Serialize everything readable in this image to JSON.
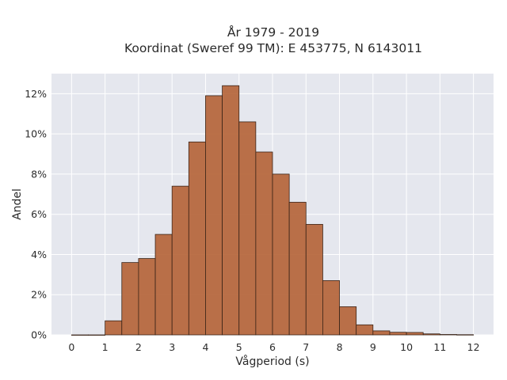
{
  "chart_data": {
    "type": "bar",
    "title_line1": "År 1979 - 2019",
    "title_line2": "Koordinat (Sweref 99 TM): E 453775, N 6143011",
    "xlabel": "Vågperiod (s)",
    "ylabel": "Andel",
    "bin_width": 0.5,
    "bin_starts": [
      0,
      0.5,
      1,
      1.5,
      2,
      2.5,
      3,
      3.5,
      4,
      4.5,
      5,
      5.5,
      6,
      6.5,
      7,
      7.5,
      8,
      8.5,
      9,
      9.5,
      10,
      10.5,
      11,
      11.5
    ],
    "values": [
      0.0,
      0.0,
      0.7,
      3.6,
      3.8,
      5.0,
      7.4,
      9.6,
      11.9,
      12.4,
      10.6,
      9.1,
      8.0,
      6.6,
      5.5,
      2.7,
      1.4,
      0.5,
      0.2,
      0.13,
      0.12,
      0.05,
      0.02,
      0.01
    ],
    "xlim": [
      -0.6,
      12.6
    ],
    "ylim": [
      0,
      13
    ],
    "xticks": [
      0,
      1,
      2,
      3,
      4,
      5,
      6,
      7,
      8,
      9,
      10,
      11,
      12
    ],
    "yticks": [
      0,
      2,
      4,
      6,
      8,
      10,
      12
    ],
    "ytick_suffix": "%",
    "bar_color": "#b5653a",
    "bar_edge_color": "#3a2418",
    "plot_background": "#e5e7ee",
    "grid_color": "#ffffff",
    "grid": true
  }
}
